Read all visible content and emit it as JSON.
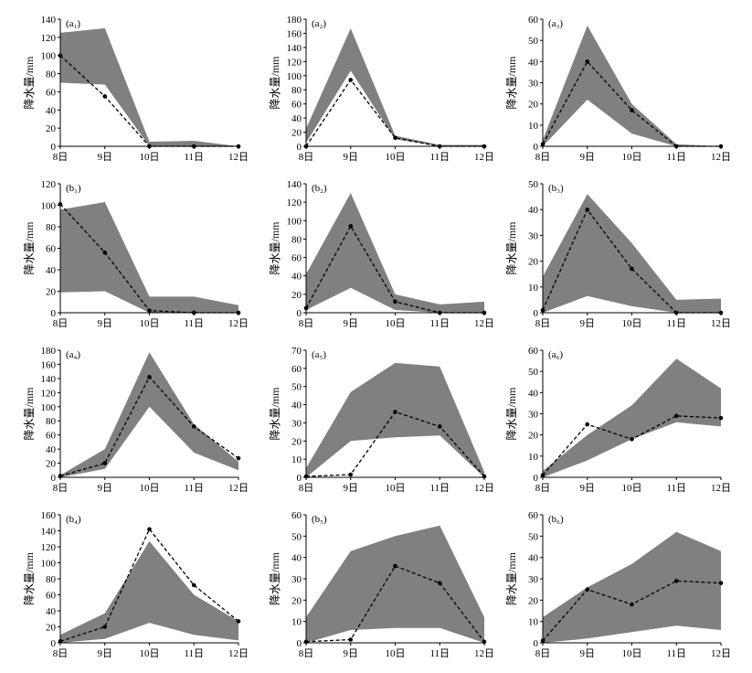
{
  "figure": {
    "x_categories": [
      "8日",
      "9日",
      "10日",
      "11日",
      "12日"
    ],
    "y_label": "降水量/mm",
    "colors": {
      "band": "#808080",
      "line": "#000000",
      "axis": "#000000"
    }
  },
  "chart_data": [
    {
      "id": "a1",
      "panel_label": "(a₁)",
      "type": "area",
      "ylim": [
        0,
        140
      ],
      "yticks": [
        0,
        20,
        40,
        60,
        80,
        100,
        120,
        140
      ],
      "band_upper": [
        125,
        130,
        5,
        6,
        0
      ],
      "band_lower": [
        70,
        68,
        0,
        0,
        0
      ],
      "observed": [
        100,
        55,
        0,
        0,
        0
      ]
    },
    {
      "id": "a2",
      "panel_label": "(a₂)",
      "type": "area",
      "ylim": [
        0,
        180
      ],
      "yticks": [
        0,
        20,
        40,
        60,
        80,
        100,
        120,
        140,
        160,
        180
      ],
      "band_upper": [
        25,
        167,
        15,
        2,
        2
      ],
      "band_lower": [
        5,
        107,
        10,
        0,
        0
      ],
      "observed": [
        0,
        94,
        12,
        0,
        0
      ]
    },
    {
      "id": "a3",
      "panel_label": "(a₃)",
      "type": "area",
      "ylim": [
        0,
        60
      ],
      "yticks": [
        0,
        10,
        20,
        30,
        40,
        50,
        60
      ],
      "band_upper": [
        3,
        57,
        20,
        1,
        0
      ],
      "band_lower": [
        0,
        22,
        6,
        0,
        0
      ],
      "observed": [
        1,
        40,
        17,
        0,
        0
      ]
    },
    {
      "id": "b1",
      "panel_label": "(b₁)",
      "type": "area",
      "ylim": [
        0,
        120
      ],
      "yticks": [
        0,
        20,
        40,
        60,
        80,
        100,
        120
      ],
      "band_upper": [
        96,
        103,
        15,
        15,
        7
      ],
      "band_lower": [
        19,
        20,
        0,
        0,
        0
      ],
      "observed": [
        101,
        56,
        2,
        0,
        0
      ]
    },
    {
      "id": "b2",
      "panel_label": "(b₂)",
      "type": "area",
      "ylim": [
        0,
        140
      ],
      "yticks": [
        0,
        20,
        40,
        60,
        80,
        100,
        120,
        140
      ],
      "band_upper": [
        42,
        130,
        20,
        9,
        12
      ],
      "band_lower": [
        3,
        27,
        3,
        0,
        0
      ],
      "observed": [
        5,
        94,
        12,
        0,
        0
      ]
    },
    {
      "id": "b3",
      "panel_label": "(b₃)",
      "type": "area",
      "ylim": [
        0,
        50
      ],
      "yticks": [
        0,
        10,
        20,
        30,
        40,
        50
      ],
      "band_upper": [
        14,
        46,
        27,
        5,
        5.5
      ],
      "band_lower": [
        0,
        6.5,
        2.5,
        0,
        0
      ],
      "observed": [
        1,
        40,
        17,
        0,
        0
      ]
    },
    {
      "id": "a4",
      "panel_label": "(a₄)",
      "type": "area",
      "ylim": [
        0,
        180
      ],
      "yticks": [
        0,
        20,
        40,
        60,
        80,
        100,
        120,
        140,
        160,
        180
      ],
      "band_upper": [
        3,
        40,
        177,
        75,
        22
      ],
      "band_lower": [
        0,
        12,
        100,
        35,
        10
      ],
      "observed": [
        2,
        20,
        142,
        72,
        27
      ]
    },
    {
      "id": "a5",
      "panel_label": "(a₅)",
      "type": "area",
      "ylim": [
        0,
        70
      ],
      "yticks": [
        0,
        10,
        20,
        30,
        40,
        50,
        60,
        70
      ],
      "band_upper": [
        5,
        47,
        63,
        61,
        3
      ],
      "band_lower": [
        0,
        20,
        22,
        23,
        0
      ],
      "observed": [
        0.5,
        1.5,
        36,
        28,
        0.5
      ]
    },
    {
      "id": "a6",
      "panel_label": "(a₆)",
      "type": "area",
      "ylim": [
        0,
        60
      ],
      "yticks": [
        0,
        10,
        20,
        30,
        40,
        50,
        60
      ],
      "band_upper": [
        3,
        20,
        34,
        56,
        42
      ],
      "band_lower": [
        0,
        8,
        18,
        26,
        24
      ],
      "observed": [
        1,
        25,
        18,
        29,
        28
      ]
    },
    {
      "id": "b4",
      "panel_label": "(b₄)",
      "type": "area",
      "ylim": [
        0,
        160
      ],
      "yticks": [
        0,
        20,
        40,
        60,
        80,
        100,
        120,
        140,
        160
      ],
      "band_upper": [
        10,
        37,
        127,
        60,
        27
      ],
      "band_lower": [
        0,
        5,
        25,
        10,
        3
      ],
      "observed": [
        2,
        20,
        142,
        72,
        27
      ]
    },
    {
      "id": "b5",
      "panel_label": "(b₅)",
      "type": "area",
      "ylim": [
        0,
        60
      ],
      "yticks": [
        0,
        10,
        20,
        30,
        40,
        50,
        60
      ],
      "band_upper": [
        12,
        43,
        50,
        55,
        12
      ],
      "band_lower": [
        0,
        6,
        7,
        7,
        0
      ],
      "observed": [
        0.5,
        1.5,
        36,
        28,
        0.5
      ]
    },
    {
      "id": "b6",
      "panel_label": "(b₆)",
      "type": "area",
      "ylim": [
        0,
        60
      ],
      "yticks": [
        0,
        10,
        20,
        30,
        40,
        50,
        60
      ],
      "band_upper": [
        12,
        26,
        37,
        52,
        43
      ],
      "band_lower": [
        0,
        2,
        5,
        8,
        6
      ],
      "observed": [
        1,
        25,
        18,
        29,
        28
      ]
    }
  ]
}
